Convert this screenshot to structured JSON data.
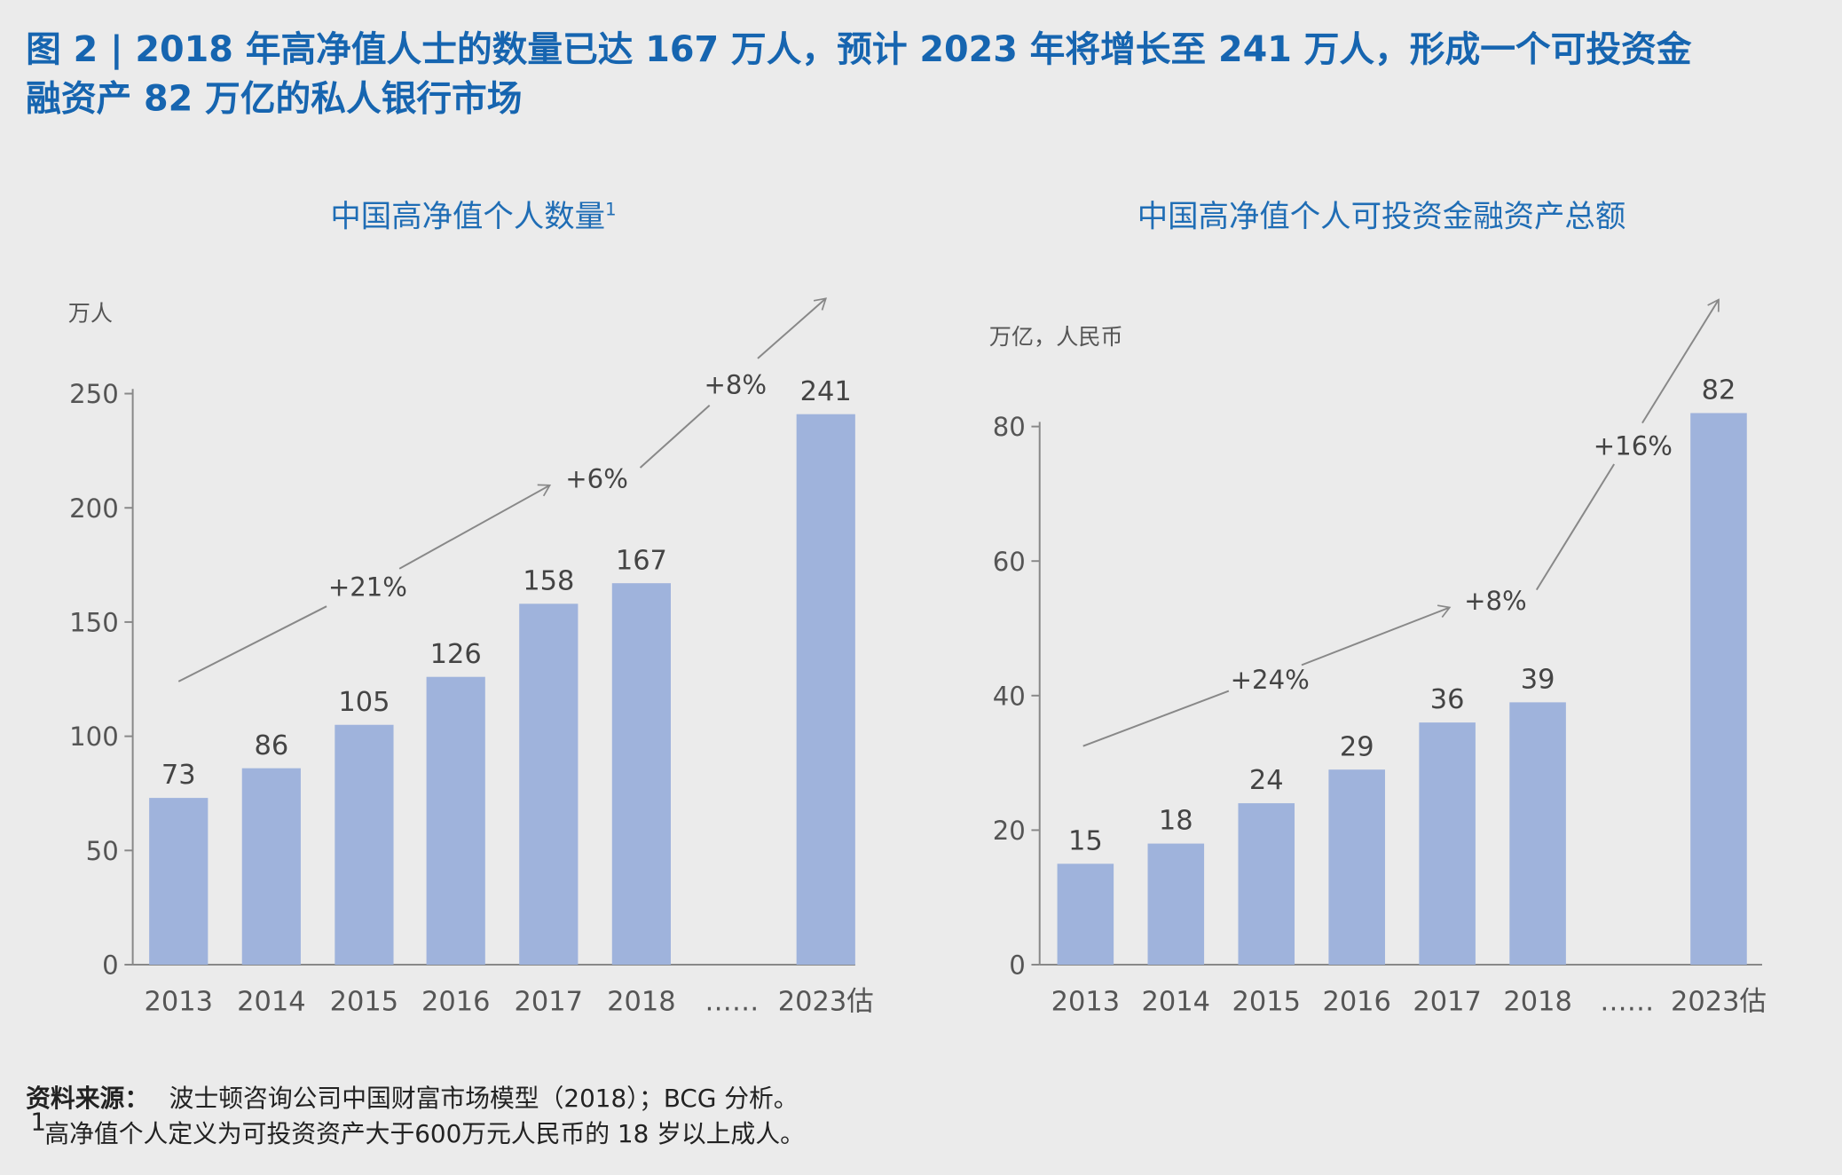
{
  "title": {
    "line1": "图 2 | 2018 年高净值人士的数量已达 167 万人，预计 2023 年将增长至 241 万人，形成一个可投资金",
    "line2": "融资产 82 万亿的私人银行市场"
  },
  "colors": {
    "bar": "#9fb3dc",
    "title": "#1665b0",
    "chart_title": "#1f6db5",
    "background": "#ebebeb"
  },
  "chart_data": [
    {
      "type": "bar",
      "title": "中国高净值个人数量",
      "title_sup": "1",
      "ylabel": "万人",
      "ylim": [
        0,
        250
      ],
      "yticks": [
        0,
        50,
        100,
        150,
        200,
        250
      ],
      "categories": [
        "2013",
        "2014",
        "2015",
        "2016",
        "2017",
        "2018",
        "……",
        "2023估"
      ],
      "values": [
        73,
        86,
        105,
        126,
        158,
        167,
        null,
        241
      ],
      "value_labels": [
        "73",
        "86",
        "105",
        "126",
        "158",
        "167",
        "",
        "241"
      ],
      "growth_annotations": [
        "+21%",
        "+6%",
        "+8%"
      ]
    },
    {
      "type": "bar",
      "title": "中国高净值个人可投资金融资产总额",
      "ylabel": "万亿，人民币",
      "ylim": [
        0,
        80
      ],
      "yticks": [
        0,
        20,
        40,
        60,
        80
      ],
      "categories": [
        "2013",
        "2014",
        "2015",
        "2016",
        "2017",
        "2018",
        "……",
        "2023估"
      ],
      "values": [
        15,
        18,
        24,
        29,
        36,
        39,
        null,
        82
      ],
      "value_labels": [
        "15",
        "18",
        "24",
        "29",
        "36",
        "39",
        "",
        "82"
      ],
      "growth_annotations": [
        "+24%",
        "+8%",
        "+16%"
      ]
    }
  ],
  "footer": {
    "source_label": "资料来源：",
    "source_text": "波士顿咨询公司中国财富市场模型（2018）；BCG 分析。",
    "note_sup": "1",
    "note_text": "高净值个人定义为可投资资产大于600万元人民币的 18 岁以上成人。"
  }
}
